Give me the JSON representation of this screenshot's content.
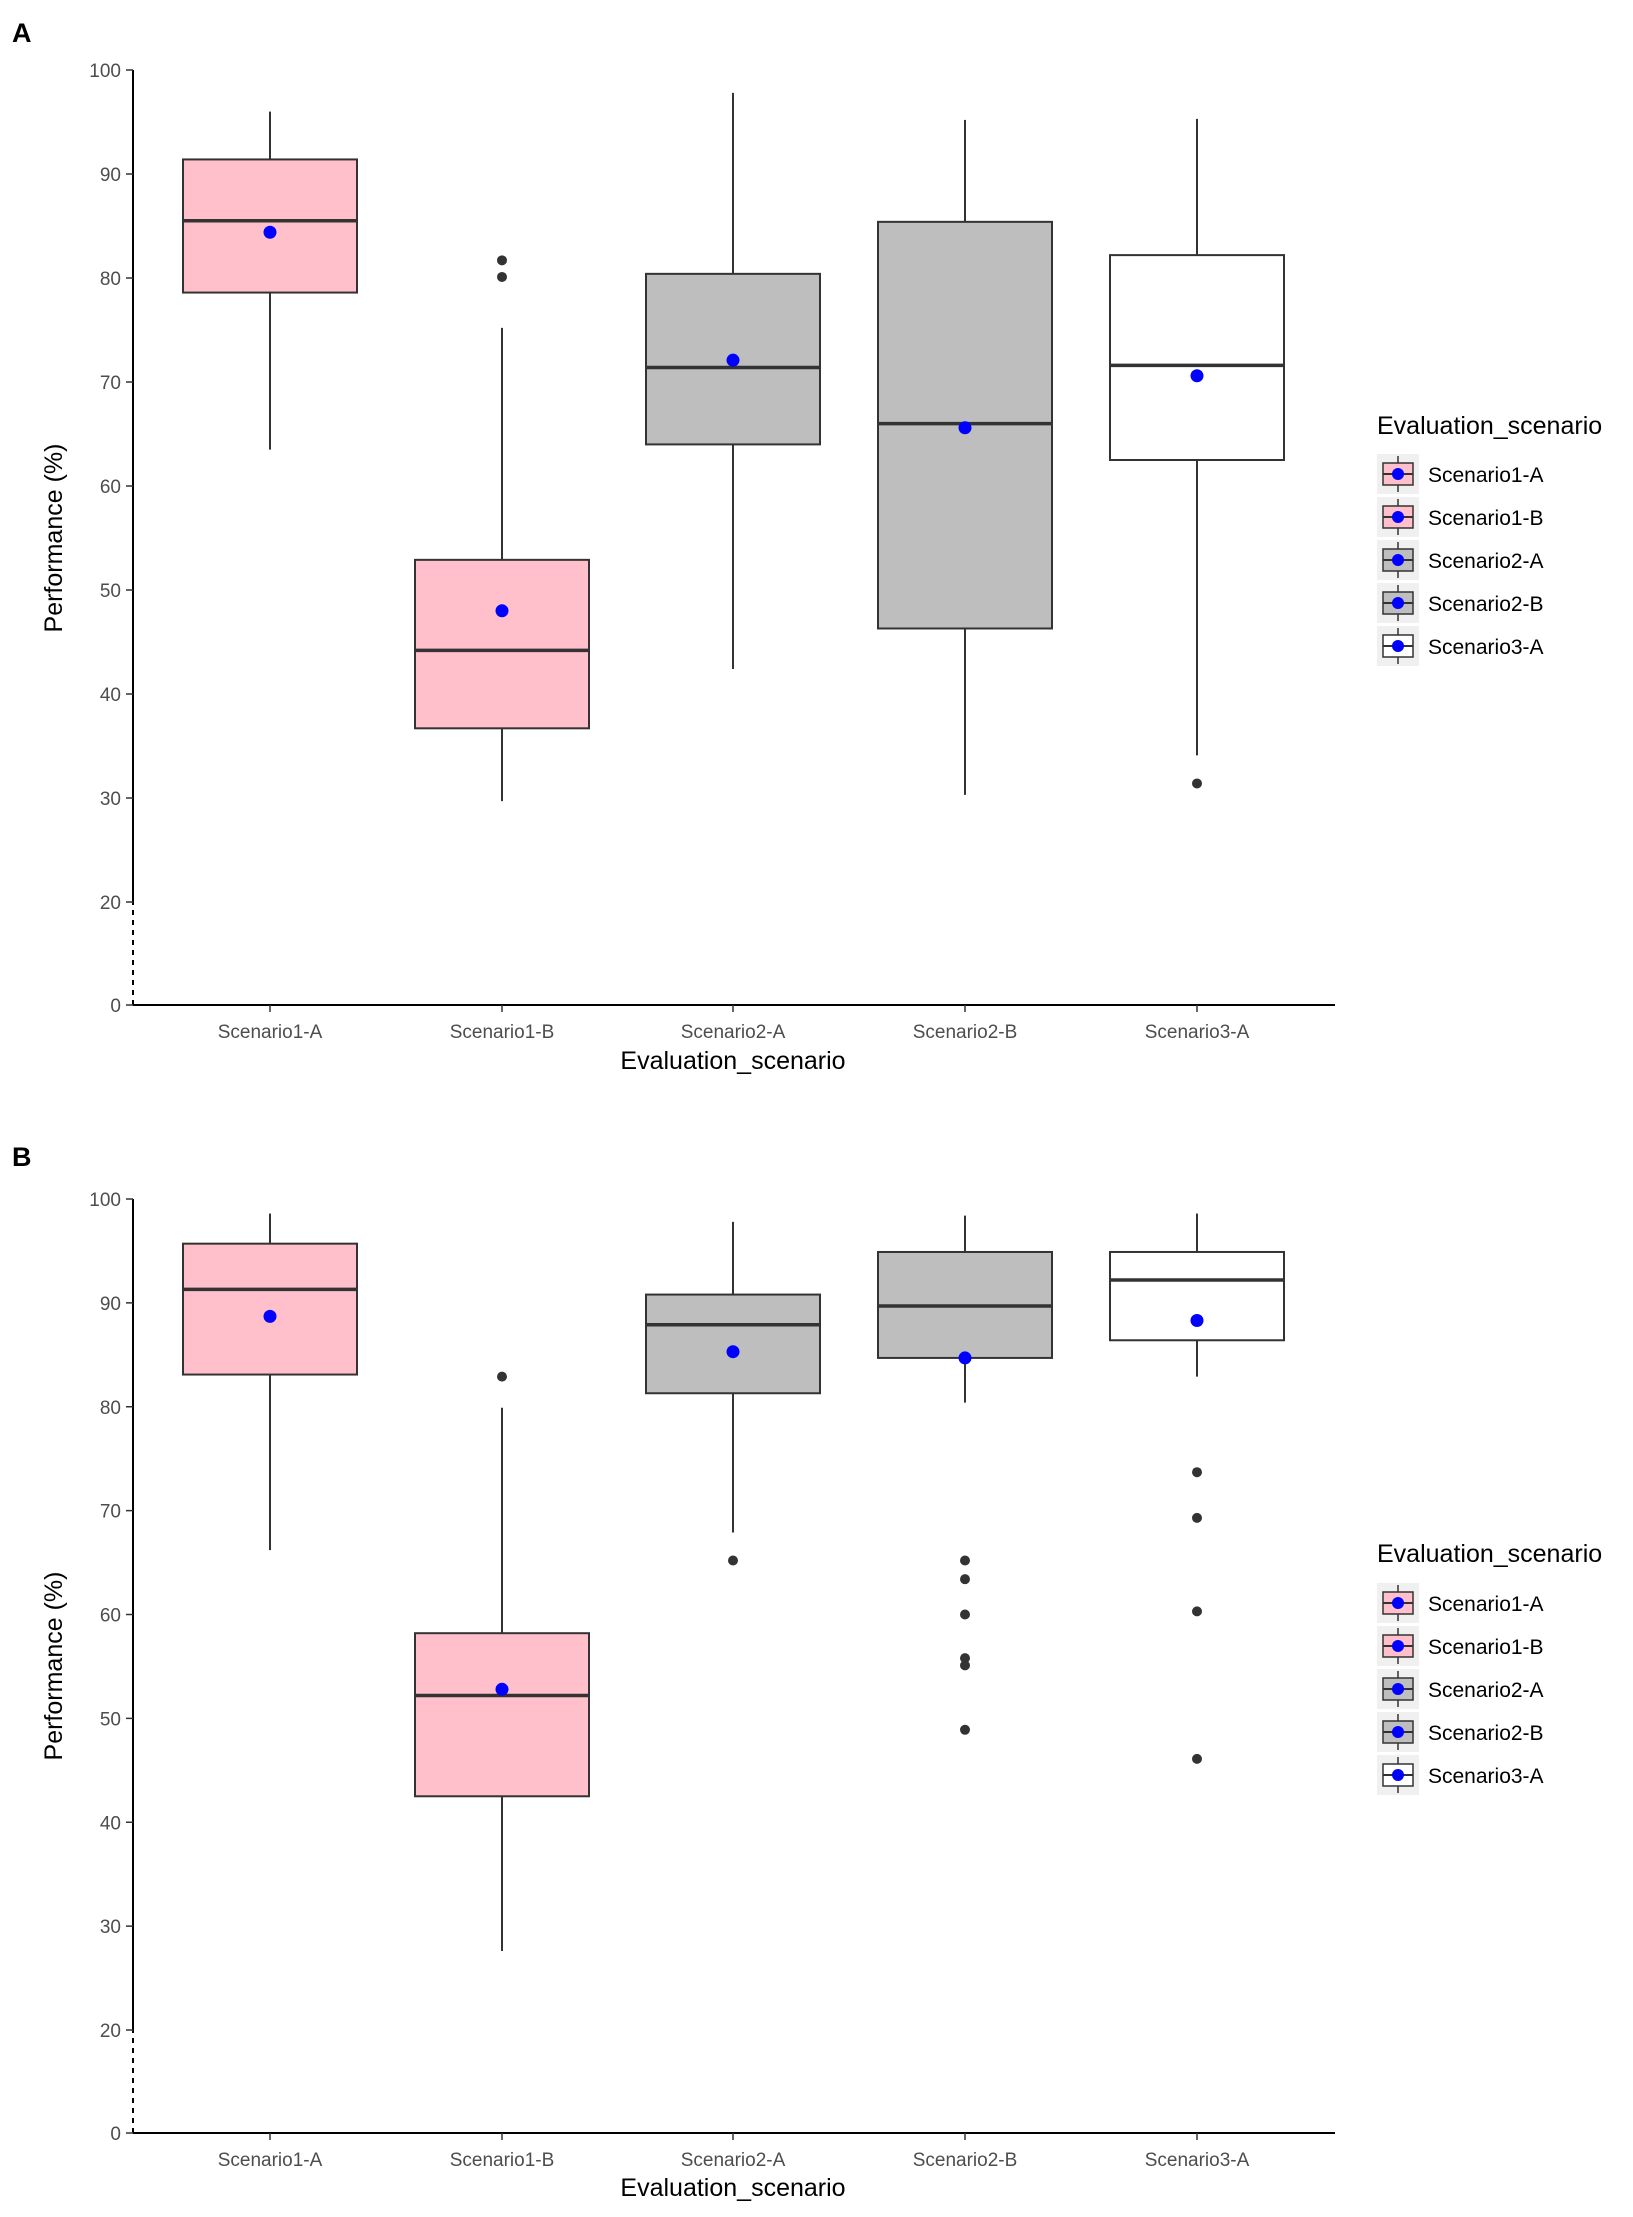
{
  "colors": {
    "pink_fill": "#ffc0cb",
    "gray_fill": "#bebebe",
    "white_fill": "#ffffff",
    "mean_point": "#0000ff",
    "outline": "#333333",
    "axis": "#000000",
    "legend_key_bg": "#f0f0f0"
  },
  "chart_data": [
    {
      "type": "box",
      "panel_label": "A",
      "xlabel": "Evaluation_scenario",
      "ylabel": "Performance (%)",
      "yticks": [
        0,
        20,
        30,
        40,
        50,
        60,
        70,
        80,
        90,
        100
      ],
      "ylim": [
        0,
        100
      ],
      "axis_break": "between 0 and 20 (dashed)",
      "legend": {
        "title": "Evaluation_scenario",
        "entries": [
          "Scenario1-A",
          "Scenario1-B",
          "Scenario2-A",
          "Scenario2-B",
          "Scenario3-A"
        ]
      },
      "categories": [
        "Scenario1-A",
        "Scenario1-B",
        "Scenario2-A",
        "Scenario2-B",
        "Scenario3-A"
      ],
      "series": [
        {
          "name": "Scenario1-A",
          "fill": "pink",
          "whisker_low": 63.5,
          "q1": 78.6,
          "median": 85.5,
          "q3": 91.4,
          "whisker_high": 96.0,
          "mean": 84.4,
          "outliers": []
        },
        {
          "name": "Scenario1-B",
          "fill": "pink",
          "whisker_low": 29.7,
          "q1": 36.7,
          "median": 44.2,
          "q3": 52.9,
          "whisker_high": 75.2,
          "mean": 48.0,
          "outliers": [
            80.1,
            81.7
          ]
        },
        {
          "name": "Scenario2-A",
          "fill": "gray",
          "whisker_low": 42.4,
          "q1": 64.0,
          "median": 71.4,
          "q3": 80.4,
          "whisker_high": 97.8,
          "mean": 72.1,
          "outliers": []
        },
        {
          "name": "Scenario2-B",
          "fill": "gray",
          "whisker_low": 30.3,
          "q1": 46.3,
          "median": 66.0,
          "q3": 85.4,
          "whisker_high": 95.2,
          "mean": 65.6,
          "outliers": []
        },
        {
          "name": "Scenario3-A",
          "fill": "white",
          "whisker_low": 34.1,
          "q1": 62.5,
          "median": 71.6,
          "q3": 82.2,
          "whisker_high": 95.3,
          "mean": 70.6,
          "outliers": [
            31.4
          ]
        }
      ]
    },
    {
      "type": "box",
      "panel_label": "B",
      "xlabel": "Evaluation_scenario",
      "ylabel": "Performance (%)",
      "yticks": [
        0,
        20,
        30,
        40,
        50,
        60,
        70,
        80,
        90,
        100
      ],
      "ylim": [
        0,
        100
      ],
      "axis_break": "between 0 and 20 (dashed)",
      "legend": {
        "title": "Evaluation_scenario",
        "entries": [
          "Scenario1-A",
          "Scenario1-B",
          "Scenario2-A",
          "Scenario2-B",
          "Scenario3-A"
        ]
      },
      "categories": [
        "Scenario1-A",
        "Scenario1-B",
        "Scenario2-A",
        "Scenario2-B",
        "Scenario3-A"
      ],
      "series": [
        {
          "name": "Scenario1-A",
          "fill": "pink",
          "whisker_low": 66.2,
          "q1": 83.1,
          "median": 91.3,
          "q3": 95.7,
          "whisker_high": 98.6,
          "mean": 88.7,
          "outliers": []
        },
        {
          "name": "Scenario1-B",
          "fill": "pink",
          "whisker_low": 27.6,
          "q1": 42.5,
          "median": 52.2,
          "q3": 58.2,
          "whisker_high": 79.9,
          "mean": 52.8,
          "outliers": [
            82.9
          ]
        },
        {
          "name": "Scenario2-A",
          "fill": "gray",
          "whisker_low": 67.9,
          "q1": 81.3,
          "median": 87.9,
          "q3": 90.8,
          "whisker_high": 97.8,
          "mean": 85.3,
          "outliers": [
            65.2
          ]
        },
        {
          "name": "Scenario2-B",
          "fill": "gray",
          "whisker_low": 80.4,
          "q1": 84.7,
          "median": 89.7,
          "q3": 94.9,
          "whisker_high": 98.4,
          "mean": 84.7,
          "outliers": [
            48.9,
            55.1,
            55.8,
            60.0,
            63.4,
            65.2
          ]
        },
        {
          "name": "Scenario3-A",
          "fill": "white",
          "whisker_low": 82.9,
          "q1": 86.4,
          "median": 92.2,
          "q3": 94.9,
          "whisker_high": 98.6,
          "mean": 88.3,
          "outliers": [
            46.1,
            60.3,
            69.3,
            73.7
          ]
        }
      ]
    }
  ]
}
